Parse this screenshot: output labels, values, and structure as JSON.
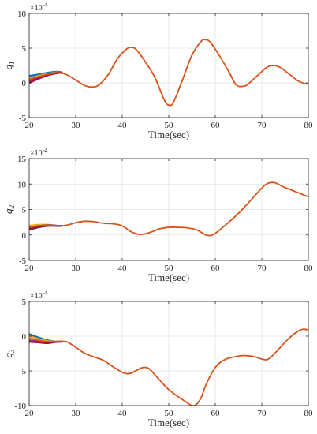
{
  "chart_data": [
    {
      "type": "line",
      "ylabel_main": "q",
      "ylabel_sub": "1",
      "xlabel": "Time(sec)",
      "exponent_label": "×10",
      "exponent_power": "-4",
      "xlim": [
        20,
        80
      ],
      "ylim": [
        -5,
        10
      ],
      "xticks": [
        20,
        30,
        40,
        50,
        60,
        70,
        80
      ],
      "yticks": [
        -5,
        0,
        5,
        10
      ],
      "colors": [
        "#0072BD",
        "#EDB120",
        "#7E2F8E",
        "#A2142F",
        "#D95319"
      ],
      "series": [
        {
          "values": [
            [
              20,
              1.0
            ],
            [
              22,
              1.2
            ],
            [
              24,
              1.45
            ],
            [
              26,
              1.6
            ],
            [
              27,
              1.5
            ]
          ]
        },
        {
          "values": [
            [
              20,
              0.6
            ],
            [
              22,
              1.0
            ],
            [
              24,
              1.3
            ],
            [
              26,
              1.5
            ],
            [
              27,
              1.5
            ]
          ]
        },
        {
          "values": [
            [
              20,
              0.3
            ],
            [
              22,
              0.8
            ],
            [
              24,
              1.2
            ],
            [
              26,
              1.45
            ],
            [
              27,
              1.5
            ]
          ]
        },
        {
          "values": [
            [
              20,
              0.0
            ],
            [
              22,
              0.6
            ],
            [
              24,
              1.1
            ],
            [
              26,
              1.4
            ],
            [
              27,
              1.5
            ]
          ]
        },
        {
          "values": [
            [
              20,
              0.5
            ],
            [
              22,
              0.9
            ],
            [
              24,
              1.25
            ],
            [
              26,
              1.45
            ],
            [
              28,
              1.2
            ],
            [
              30,
              0.4
            ],
            [
              32,
              -0.4
            ],
            [
              33.5,
              -0.6
            ],
            [
              35,
              -0.3
            ],
            [
              37,
              1.2
            ],
            [
              39,
              3.5
            ],
            [
              41,
              4.9
            ],
            [
              42,
              5.1
            ],
            [
              43,
              4.8
            ],
            [
              45,
              3.0
            ],
            [
              47,
              0.8
            ],
            [
              49,
              -2.4
            ],
            [
              50,
              -3.2
            ],
            [
              51,
              -2.8
            ],
            [
              53,
              0.5
            ],
            [
              55,
              4.0
            ],
            [
              57,
              6.0
            ],
            [
              58,
              6.2
            ],
            [
              59,
              5.8
            ],
            [
              61,
              3.8
            ],
            [
              63,
              1.5
            ],
            [
              64.5,
              -0.3
            ],
            [
              66,
              -0.5
            ],
            [
              67,
              -0.2
            ],
            [
              69,
              1.0
            ],
            [
              71,
              2.2
            ],
            [
              72.5,
              2.5
            ],
            [
              74,
              2.2
            ],
            [
              76,
              1.2
            ],
            [
              78,
              0.2
            ],
            [
              80,
              -0.2
            ]
          ]
        }
      ]
    },
    {
      "type": "line",
      "ylabel_main": "q",
      "ylabel_sub": "2",
      "xlabel": "Time(sec)",
      "exponent_label": "×10",
      "exponent_power": "-4",
      "xlim": [
        20,
        80
      ],
      "ylim": [
        -5,
        15
      ],
      "xticks": [
        20,
        30,
        40,
        50,
        60,
        70,
        80
      ],
      "yticks": [
        -5,
        0,
        5,
        10,
        15
      ],
      "colors": [
        "#0072BD",
        "#EDB120",
        "#7E2F8E",
        "#A2142F",
        "#D95319"
      ],
      "series": [
        {
          "values": [
            [
              20,
              1.0
            ],
            [
              22,
              1.5
            ],
            [
              24,
              1.8
            ],
            [
              26,
              1.8
            ],
            [
              27,
              1.8
            ]
          ]
        },
        {
          "values": [
            [
              20,
              1.8
            ],
            [
              22,
              2.0
            ],
            [
              24,
              2.0
            ],
            [
              26,
              1.8
            ],
            [
              27,
              1.8
            ]
          ]
        },
        {
          "values": [
            [
              20,
              1.3
            ],
            [
              22,
              1.7
            ],
            [
              24,
              1.9
            ],
            [
              26,
              1.8
            ],
            [
              27,
              1.8
            ]
          ]
        },
        {
          "values": [
            [
              20,
              1.1
            ],
            [
              22,
              1.6
            ],
            [
              24,
              1.8
            ],
            [
              26,
              1.8
            ],
            [
              27,
              1.8
            ]
          ]
        },
        {
          "values": [
            [
              20,
              1.5
            ],
            [
              22,
              1.8
            ],
            [
              24,
              1.9
            ],
            [
              26,
              1.8
            ],
            [
              28,
              1.9
            ],
            [
              30,
              2.4
            ],
            [
              32,
              2.7
            ],
            [
              34,
              2.6
            ],
            [
              36,
              2.3
            ],
            [
              38,
              2.2
            ],
            [
              40,
              1.8
            ],
            [
              42,
              0.6
            ],
            [
              44,
              0.1
            ],
            [
              46,
              0.5
            ],
            [
              48,
              1.2
            ],
            [
              50,
              1.5
            ],
            [
              52,
              1.5
            ],
            [
              54,
              1.4
            ],
            [
              56,
              1.0
            ],
            [
              58,
              0.0
            ],
            [
              59,
              -0.1
            ],
            [
              60,
              0.3
            ],
            [
              62,
              1.8
            ],
            [
              64,
              3.4
            ],
            [
              66,
              5.2
            ],
            [
              68,
              7.2
            ],
            [
              70,
              9.2
            ],
            [
              71,
              10.0
            ],
            [
              72,
              10.3
            ],
            [
              73,
              10.2
            ],
            [
              75,
              9.3
            ],
            [
              77,
              8.6
            ],
            [
              80,
              7.5
            ]
          ]
        }
      ]
    },
    {
      "type": "line",
      "ylabel_main": "q",
      "ylabel_sub": "3",
      "xlabel": "Time(sec)",
      "exponent_label": "×10",
      "exponent_power": "-4",
      "xlim": [
        20,
        80
      ],
      "ylim": [
        -10,
        5
      ],
      "xticks": [
        20,
        30,
        40,
        50,
        60,
        70,
        80
      ],
      "yticks": [
        -10,
        -5,
        0,
        5
      ],
      "colors": [
        "#0072BD",
        "#EDB120",
        "#7E2F8E",
        "#A2142F",
        "#D95319"
      ],
      "series": [
        {
          "values": [
            [
              20,
              0.3
            ],
            [
              22,
              -0.2
            ],
            [
              24,
              -0.6
            ],
            [
              26,
              -0.8
            ],
            [
              27,
              -0.8
            ]
          ]
        },
        {
          "values": [
            [
              20,
              0.0
            ],
            [
              22,
              -0.4
            ],
            [
              24,
              -0.7
            ],
            [
              26,
              -0.8
            ],
            [
              27,
              -0.8
            ]
          ]
        },
        {
          "values": [
            [
              20,
              -0.6
            ],
            [
              22,
              -0.8
            ],
            [
              24,
              -0.9
            ],
            [
              26,
              -0.8
            ],
            [
              27,
              -0.8
            ]
          ]
        },
        {
          "values": [
            [
              20,
              -0.8
            ],
            [
              22,
              -0.9
            ],
            [
              24,
              -1.0
            ],
            [
              26,
              -0.8
            ],
            [
              27,
              -0.8
            ]
          ]
        },
        {
          "values": [
            [
              20,
              -0.3
            ],
            [
              22,
              -0.6
            ],
            [
              24,
              -0.8
            ],
            [
              26,
              -0.8
            ],
            [
              28,
              -0.8
            ],
            [
              30,
              -1.6
            ],
            [
              32,
              -2.5
            ],
            [
              34,
              -3.0
            ],
            [
              36,
              -3.5
            ],
            [
              38,
              -4.4
            ],
            [
              40,
              -5.2
            ],
            [
              41,
              -5.4
            ],
            [
              42,
              -5.3
            ],
            [
              44,
              -4.6
            ],
            [
              45,
              -4.5
            ],
            [
              46,
              -4.8
            ],
            [
              48,
              -6.3
            ],
            [
              50,
              -7.7
            ],
            [
              52,
              -8.7
            ],
            [
              54,
              -9.6
            ],
            [
              55,
              -10.0
            ],
            [
              56,
              -9.8
            ],
            [
              57,
              -8.8
            ],
            [
              58,
              -7.0
            ],
            [
              60,
              -4.5
            ],
            [
              62,
              -3.4
            ],
            [
              64,
              -3.0
            ],
            [
              66,
              -2.8
            ],
            [
              68,
              -2.9
            ],
            [
              70,
              -3.3
            ],
            [
              71,
              -3.4
            ],
            [
              72,
              -3.0
            ],
            [
              74,
              -1.6
            ],
            [
              76,
              -0.2
            ],
            [
              78,
              0.8
            ],
            [
              79,
              1.0
            ],
            [
              80,
              0.9
            ]
          ]
        }
      ]
    }
  ]
}
